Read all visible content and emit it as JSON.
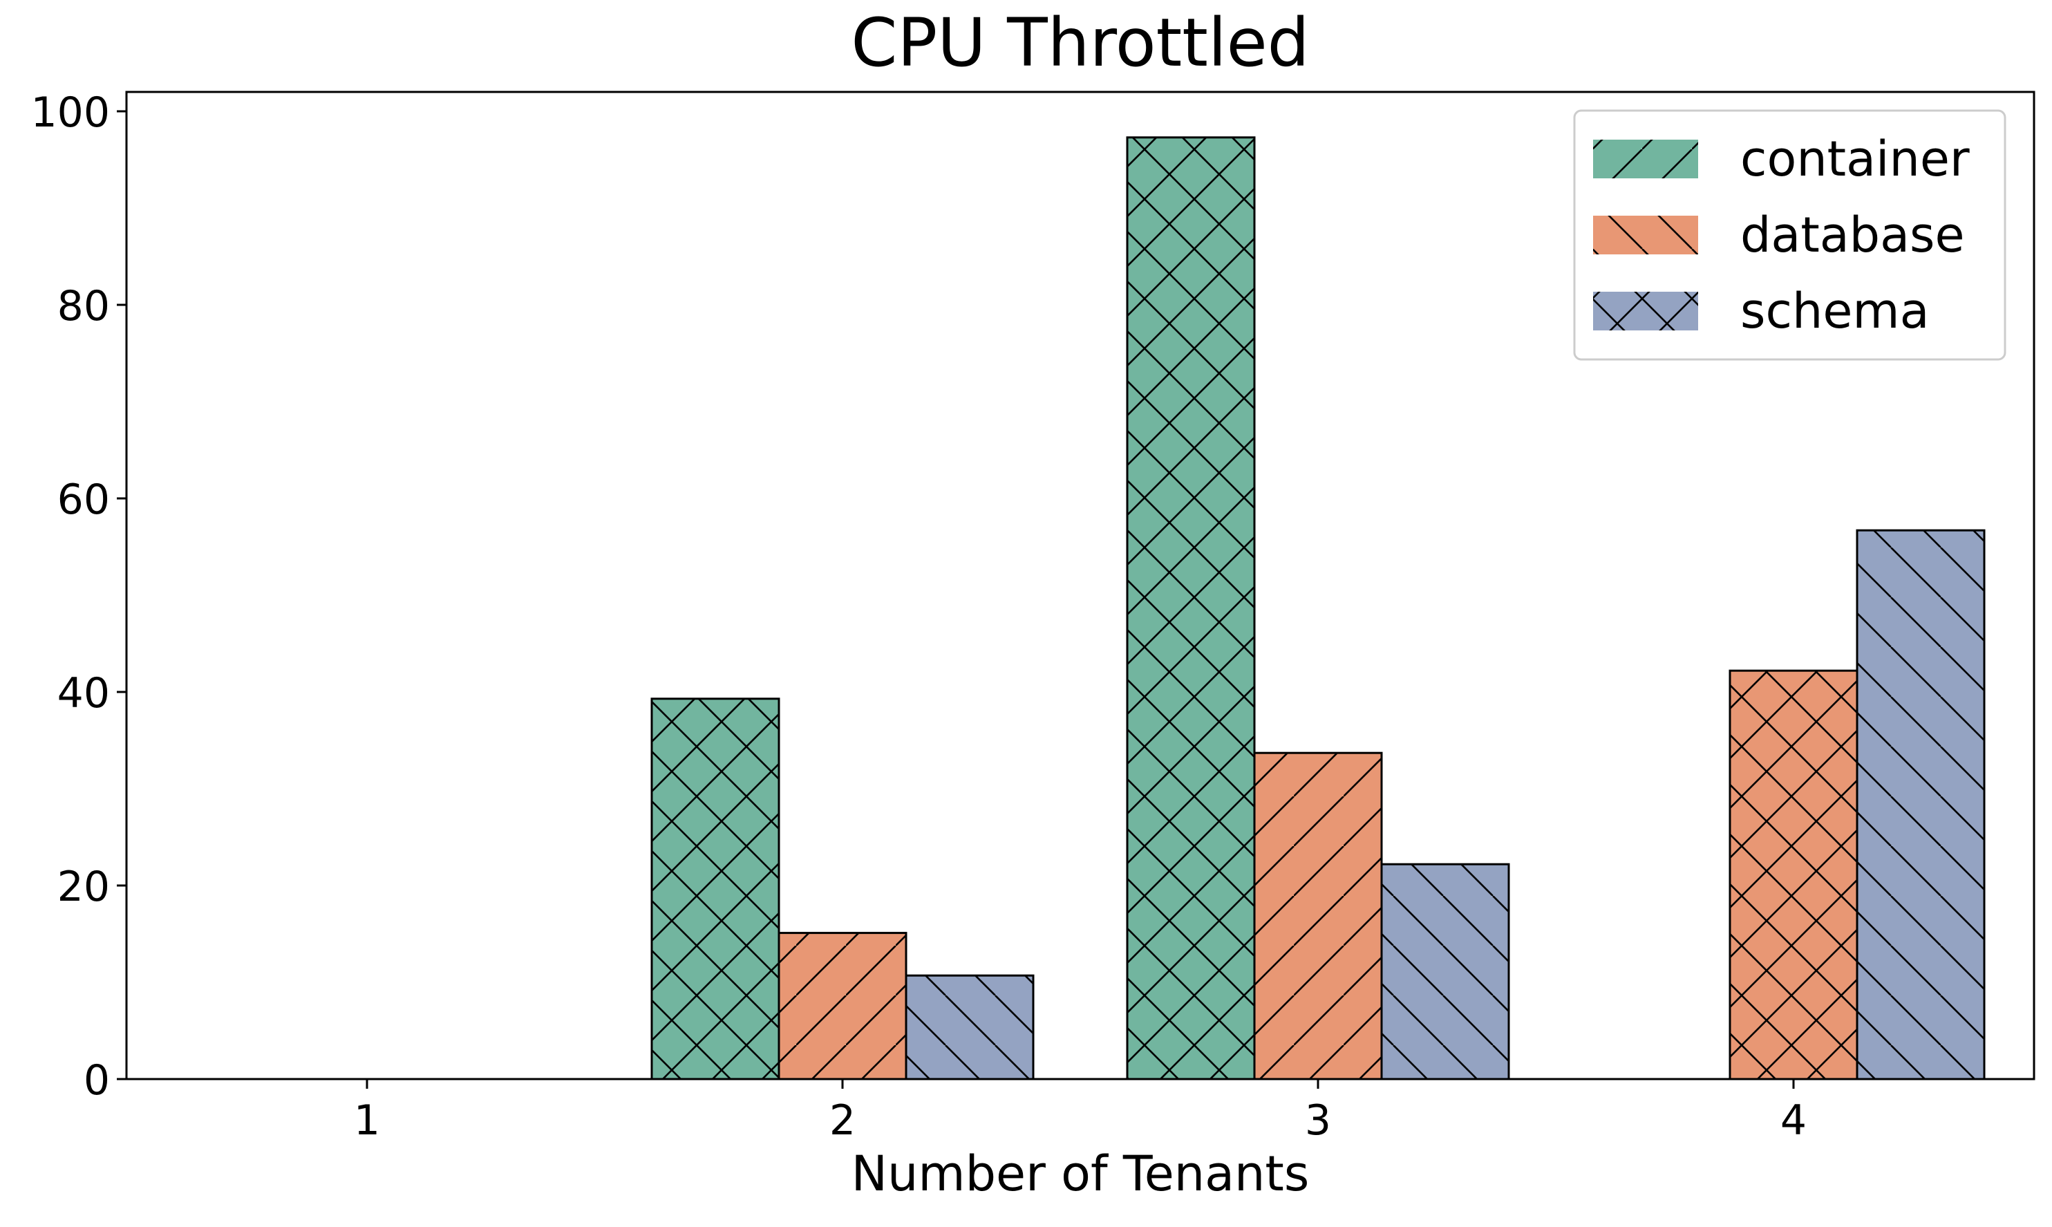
{
  "chart_data": {
    "type": "bar",
    "title": "CPU Throttled",
    "xlabel": "Number of Tenants",
    "ylabel": "",
    "categories": [
      "1",
      "2",
      "3",
      "4"
    ],
    "ylim": [
      0,
      102
    ],
    "yticks": [
      0,
      20,
      40,
      60,
      80,
      100
    ],
    "grid": false,
    "legend_position": "top-right",
    "series": [
      {
        "name": "container",
        "color": "#72b59f",
        "values": [
          0,
          39.3,
          97.3,
          null
        ]
      },
      {
        "name": "database",
        "color": "#e89774",
        "values": [
          0,
          15.1,
          33.7,
          42.2
        ]
      },
      {
        "name": "schema",
        "color": "#94a3c2",
        "values": [
          0,
          10.7,
          22.2,
          56.7
        ]
      }
    ],
    "legend_hatches": [
      "/",
      "\\",
      "x"
    ],
    "bar_hatches": [
      [
        null,
        "x",
        "x",
        null
      ],
      [
        null,
        "/",
        "/",
        "x"
      ],
      [
        null,
        "\\",
        "\\",
        "\\"
      ]
    ]
  }
}
